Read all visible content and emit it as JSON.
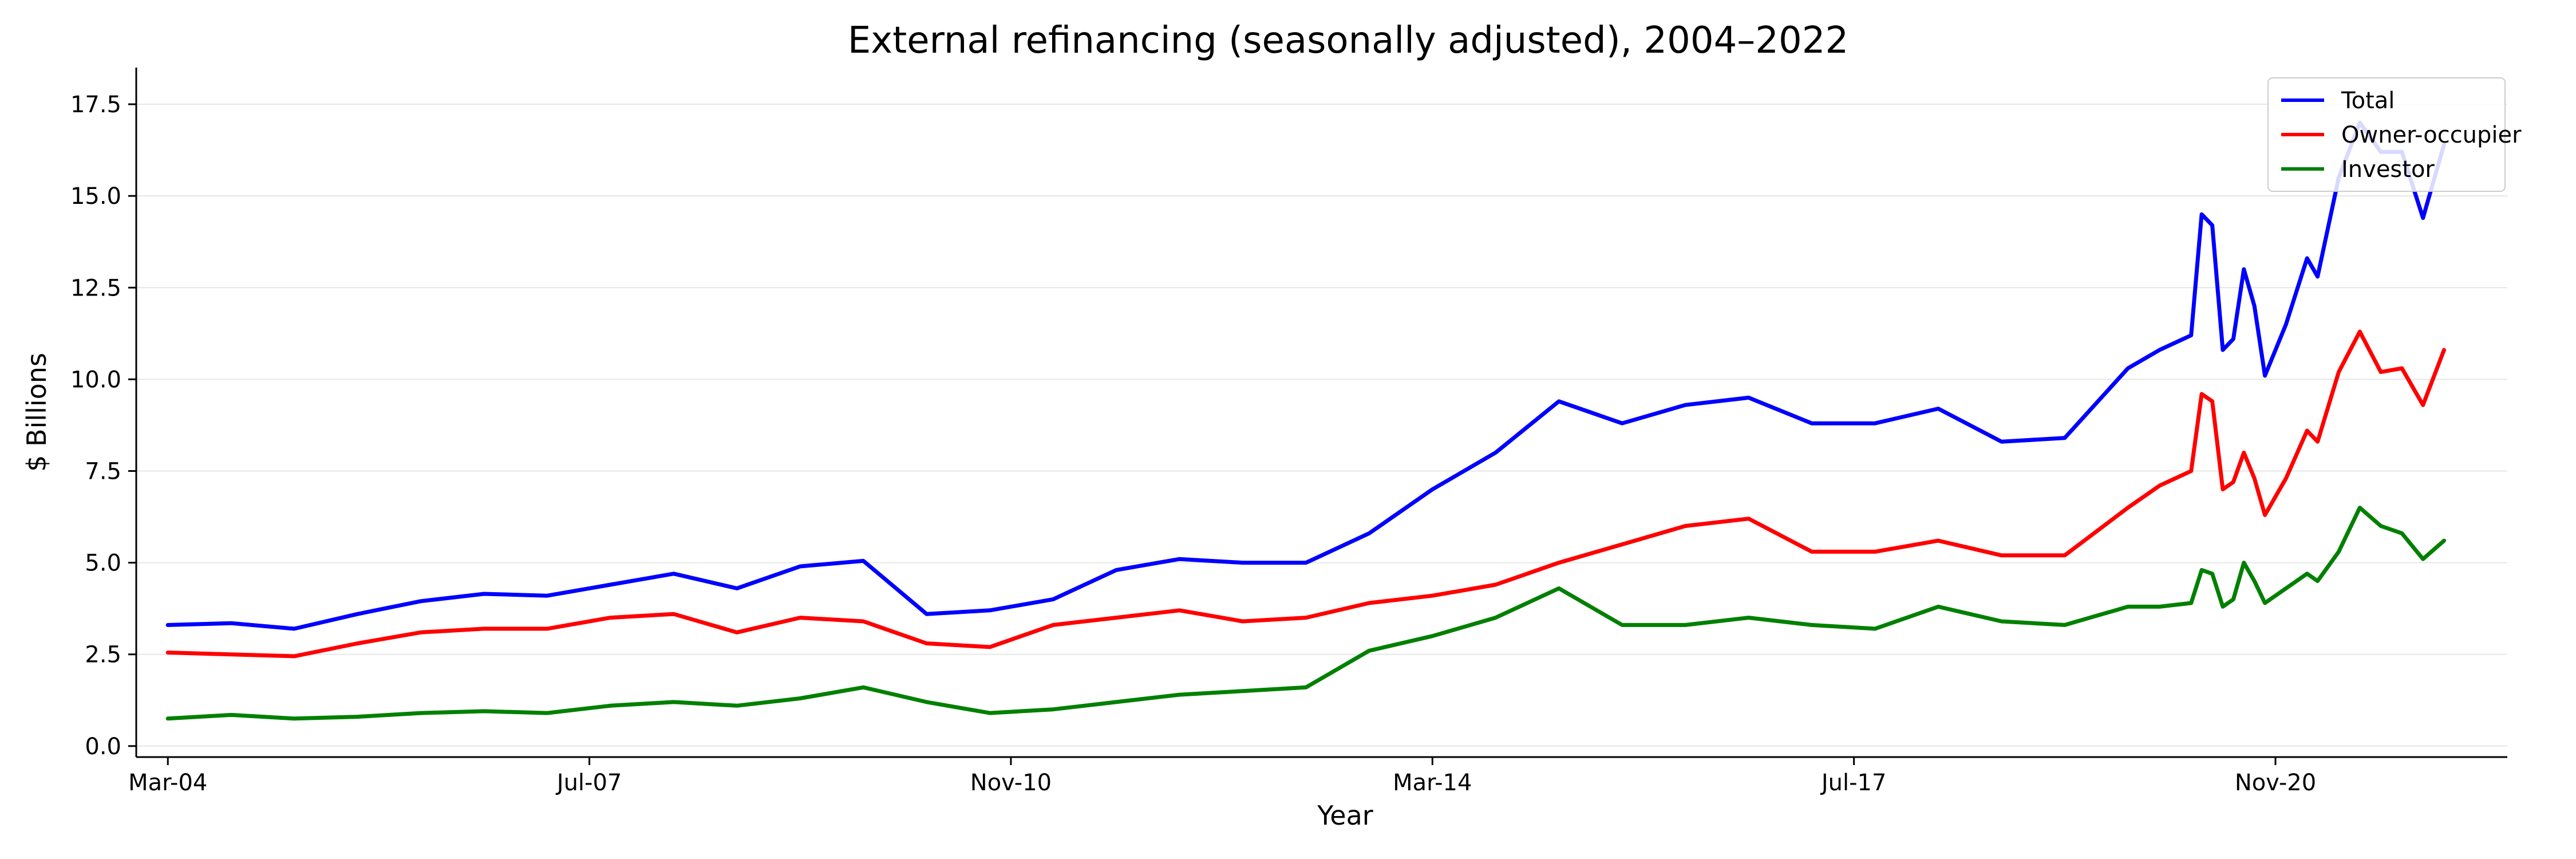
{
  "chart_data": {
    "type": "line",
    "title": "External refinancing (seasonally adjusted), 2004–2022",
    "xlabel": "Year",
    "ylabel": "$ Billions",
    "xlim": [
      "2003-12-01",
      "2022-09-01"
    ],
    "ylim": [
      -0.3,
      18.5
    ],
    "x_ticks": [
      {
        "date": "2004-03-01",
        "label": "Mar-04"
      },
      {
        "date": "2007-07-01",
        "label": "Jul-07"
      },
      {
        "date": "2010-11-01",
        "label": "Nov-10"
      },
      {
        "date": "2014-03-01",
        "label": "Mar-14"
      },
      {
        "date": "2017-07-01",
        "label": "Jul-17"
      },
      {
        "date": "2020-11-01",
        "label": "Nov-20"
      }
    ],
    "y_ticks": [
      {
        "value": 0,
        "label": "0.0"
      },
      {
        "value": 2.5,
        "label": "2.5"
      },
      {
        "value": 5,
        "label": "5.0"
      },
      {
        "value": 7.5,
        "label": "7.5"
      },
      {
        "value": 10,
        "label": "10.0"
      },
      {
        "value": 12.5,
        "label": "12.5"
      },
      {
        "value": 15,
        "label": "15.0"
      },
      {
        "value": 17.5,
        "label": "17.5"
      }
    ],
    "grid": "horizontal",
    "legend_position": "top-right",
    "series": [
      {
        "name": "Total",
        "color": "#0000ff",
        "points": [
          [
            "2004-03",
            3.3
          ],
          [
            "2004-09",
            3.35
          ],
          [
            "2005-03",
            3.2
          ],
          [
            "2005-09",
            3.6
          ],
          [
            "2006-03",
            3.95
          ],
          [
            "2006-09",
            4.15
          ],
          [
            "2007-03",
            4.1
          ],
          [
            "2007-09",
            4.4
          ],
          [
            "2008-03",
            4.7
          ],
          [
            "2008-09",
            4.3
          ],
          [
            "2009-03",
            4.9
          ],
          [
            "2009-09",
            5.05
          ],
          [
            "2010-03",
            3.6
          ],
          [
            "2010-09",
            3.7
          ],
          [
            "2011-03",
            4.0
          ],
          [
            "2011-09",
            4.8
          ],
          [
            "2012-03",
            5.1
          ],
          [
            "2012-09",
            5.0
          ],
          [
            "2013-03",
            5.0
          ],
          [
            "2013-09",
            5.8
          ],
          [
            "2014-03",
            7.0
          ],
          [
            "2014-09",
            8.0
          ],
          [
            "2015-03",
            9.4
          ],
          [
            "2015-09",
            8.8
          ],
          [
            "2016-03",
            9.3
          ],
          [
            "2016-09",
            9.5
          ],
          [
            "2017-03",
            8.8
          ],
          [
            "2017-09",
            8.8
          ],
          [
            "2018-03",
            9.2
          ],
          [
            "2018-09",
            8.3
          ],
          [
            "2019-03",
            8.4
          ],
          [
            "2019-09",
            10.3
          ],
          [
            "2019-12",
            10.8
          ],
          [
            "2020-03",
            11.2
          ],
          [
            "2020-04",
            14.5
          ],
          [
            "2020-05",
            14.2
          ],
          [
            "2020-06",
            10.8
          ],
          [
            "2020-07",
            11.1
          ],
          [
            "2020-08",
            13.0
          ],
          [
            "2020-09",
            12.0
          ],
          [
            "2020-10",
            10.1
          ],
          [
            "2020-12",
            11.5
          ],
          [
            "2021-02",
            13.3
          ],
          [
            "2021-03",
            12.8
          ],
          [
            "2021-05",
            15.5
          ],
          [
            "2021-07",
            17.0
          ],
          [
            "2021-09",
            16.2
          ],
          [
            "2021-11",
            16.2
          ],
          [
            "2022-01",
            14.4
          ],
          [
            "2022-03",
            16.4
          ]
        ]
      },
      {
        "name": "Owner-occupier",
        "color": "#ff0000",
        "points": [
          [
            "2004-03",
            2.55
          ],
          [
            "2004-09",
            2.5
          ],
          [
            "2005-03",
            2.45
          ],
          [
            "2005-09",
            2.8
          ],
          [
            "2006-03",
            3.1
          ],
          [
            "2006-09",
            3.2
          ],
          [
            "2007-03",
            3.2
          ],
          [
            "2007-09",
            3.5
          ],
          [
            "2008-03",
            3.6
          ],
          [
            "2008-09",
            3.1
          ],
          [
            "2009-03",
            3.5
          ],
          [
            "2009-09",
            3.4
          ],
          [
            "2010-03",
            2.8
          ],
          [
            "2010-09",
            2.7
          ],
          [
            "2011-03",
            3.3
          ],
          [
            "2011-09",
            3.5
          ],
          [
            "2012-03",
            3.7
          ],
          [
            "2012-09",
            3.4
          ],
          [
            "2013-03",
            3.5
          ],
          [
            "2013-09",
            3.9
          ],
          [
            "2014-03",
            4.1
          ],
          [
            "2014-09",
            4.4
          ],
          [
            "2015-03",
            5.0
          ],
          [
            "2015-09",
            5.5
          ],
          [
            "2016-03",
            6.0
          ],
          [
            "2016-09",
            6.2
          ],
          [
            "2017-03",
            5.3
          ],
          [
            "2017-09",
            5.3
          ],
          [
            "2018-03",
            5.6
          ],
          [
            "2018-09",
            5.2
          ],
          [
            "2019-03",
            5.2
          ],
          [
            "2019-09",
            6.5
          ],
          [
            "2019-12",
            7.1
          ],
          [
            "2020-03",
            7.5
          ],
          [
            "2020-04",
            9.6
          ],
          [
            "2020-05",
            9.4
          ],
          [
            "2020-06",
            7.0
          ],
          [
            "2020-07",
            7.2
          ],
          [
            "2020-08",
            8.0
          ],
          [
            "2020-09",
            7.3
          ],
          [
            "2020-10",
            6.3
          ],
          [
            "2020-12",
            7.3
          ],
          [
            "2021-02",
            8.6
          ],
          [
            "2021-03",
            8.3
          ],
          [
            "2021-05",
            10.2
          ],
          [
            "2021-07",
            11.3
          ],
          [
            "2021-09",
            10.2
          ],
          [
            "2021-11",
            10.3
          ],
          [
            "2022-01",
            9.3
          ],
          [
            "2022-03",
            10.8
          ]
        ]
      },
      {
        "name": "Investor",
        "color": "#008000",
        "points": [
          [
            "2004-03",
            0.75
          ],
          [
            "2004-09",
            0.85
          ],
          [
            "2005-03",
            0.75
          ],
          [
            "2005-09",
            0.8
          ],
          [
            "2006-03",
            0.9
          ],
          [
            "2006-09",
            0.95
          ],
          [
            "2007-03",
            0.9
          ],
          [
            "2007-09",
            1.1
          ],
          [
            "2008-03",
            1.2
          ],
          [
            "2008-09",
            1.1
          ],
          [
            "2009-03",
            1.3
          ],
          [
            "2009-09",
            1.6
          ],
          [
            "2010-03",
            1.2
          ],
          [
            "2010-09",
            0.9
          ],
          [
            "2011-03",
            1.0
          ],
          [
            "2011-09",
            1.2
          ],
          [
            "2012-03",
            1.4
          ],
          [
            "2012-09",
            1.5
          ],
          [
            "2013-03",
            1.6
          ],
          [
            "2013-09",
            2.6
          ],
          [
            "2014-03",
            3.0
          ],
          [
            "2014-09",
            3.5
          ],
          [
            "2015-03",
            4.3
          ],
          [
            "2015-09",
            3.3
          ],
          [
            "2016-03",
            3.3
          ],
          [
            "2016-09",
            3.5
          ],
          [
            "2017-03",
            3.3
          ],
          [
            "2017-09",
            3.2
          ],
          [
            "2018-03",
            3.8
          ],
          [
            "2018-09",
            3.4
          ],
          [
            "2019-03",
            3.3
          ],
          [
            "2019-09",
            3.8
          ],
          [
            "2019-12",
            3.8
          ],
          [
            "2020-03",
            3.9
          ],
          [
            "2020-04",
            4.8
          ],
          [
            "2020-05",
            4.7
          ],
          [
            "2020-06",
            3.8
          ],
          [
            "2020-07",
            4.0
          ],
          [
            "2020-08",
            5.0
          ],
          [
            "2020-09",
            4.5
          ],
          [
            "2020-10",
            3.9
          ],
          [
            "2020-12",
            4.3
          ],
          [
            "2021-02",
            4.7
          ],
          [
            "2021-03",
            4.5
          ],
          [
            "2021-05",
            5.3
          ],
          [
            "2021-07",
            6.5
          ],
          [
            "2021-09",
            6.0
          ],
          [
            "2021-11",
            5.8
          ],
          [
            "2022-01",
            5.1
          ],
          [
            "2022-03",
            5.6
          ]
        ]
      }
    ]
  }
}
